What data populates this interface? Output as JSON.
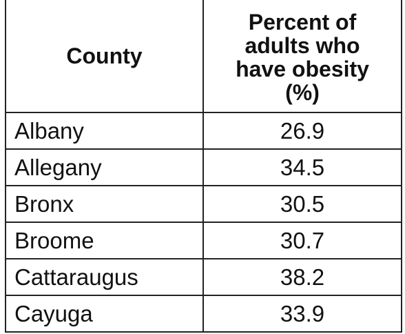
{
  "table": {
    "headers": {
      "county": "County",
      "percent_lines": [
        "Percent of",
        "adults who",
        "have obesity",
        "(%)"
      ]
    },
    "rows": [
      {
        "county": "Albany",
        "value": "26.9"
      },
      {
        "county": "Allegany",
        "value": "34.5"
      },
      {
        "county": "Bronx",
        "value": "30.5"
      },
      {
        "county": "Broome",
        "value": "30.7"
      },
      {
        "county": "Cattaraugus",
        "value": "38.2"
      },
      {
        "county": "Cayuga",
        "value": "33.9"
      }
    ]
  }
}
